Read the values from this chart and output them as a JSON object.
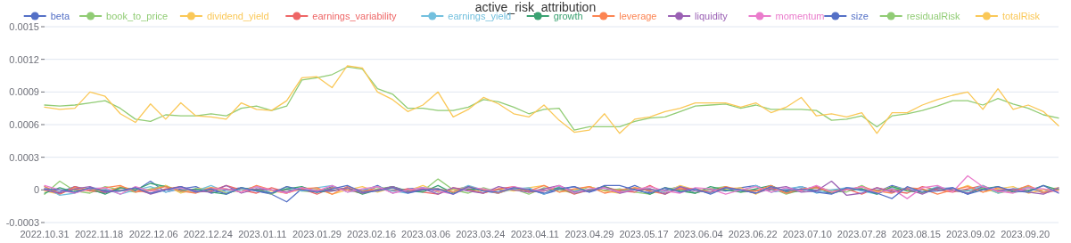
{
  "chart_data": {
    "type": "line",
    "title": "active_risk_attribution",
    "legend": "top",
    "grid": "y",
    "marker": "none",
    "xlim": [
      "2022-10-31",
      "2023-10-01"
    ],
    "ylim": [
      -0.0003,
      0.0015
    ],
    "yticks": [
      -0.0003,
      0,
      0.0003,
      0.0006,
      0.0009,
      0.0012,
      0.0015
    ],
    "xticks": [
      {
        "value": "2022-10-31",
        "label": "2022.10.31"
      },
      {
        "value": "2022-11-18",
        "label": "2022.11.18"
      },
      {
        "value": "2022-12-06",
        "label": "2022.12.06"
      },
      {
        "value": "2022-12-24",
        "label": "2022.12.24"
      },
      {
        "value": "2023-01-11",
        "label": "2023.01.11"
      },
      {
        "value": "2023-01-29",
        "label": "2023.01.29"
      },
      {
        "value": "2023-02-16",
        "label": "2023.02.16"
      },
      {
        "value": "2023-03-06",
        "label": "2023.03.06"
      },
      {
        "value": "2023-03-24",
        "label": "2023.03.24"
      },
      {
        "value": "2023-04-11",
        "label": "2023.04.11"
      },
      {
        "value": "2023-04-29",
        "label": "2023.04.29"
      },
      {
        "value": "2023-05-17",
        "label": "2023.05.17"
      },
      {
        "value": "2023-06-04",
        "label": "2023.06.04"
      },
      {
        "value": "2023-06-22",
        "label": "2023.06.22"
      },
      {
        "value": "2023-07-10",
        "label": "2023.07.10"
      },
      {
        "value": "2023-07-28",
        "label": "2023.07.28"
      },
      {
        "value": "2023-08-15",
        "label": "2023.08.15"
      },
      {
        "value": "2023-09-02",
        "label": "2023.09.02"
      },
      {
        "value": "2023-09-20",
        "label": "2023.09.20"
      }
    ],
    "x": [
      "2022-10-31",
      "2022-11-05",
      "2022-11-10",
      "2022-11-15",
      "2022-11-20",
      "2022-11-25",
      "2022-11-30",
      "2022-12-05",
      "2022-12-10",
      "2022-12-15",
      "2022-12-20",
      "2022-12-25",
      "2022-12-30",
      "2023-01-04",
      "2023-01-09",
      "2023-01-14",
      "2023-01-19",
      "2023-01-24",
      "2023-01-29",
      "2023-02-03",
      "2023-02-08",
      "2023-02-13",
      "2023-02-18",
      "2023-02-23",
      "2023-02-28",
      "2023-03-05",
      "2023-03-10",
      "2023-03-15",
      "2023-03-20",
      "2023-03-25",
      "2023-03-30",
      "2023-04-04",
      "2023-04-09",
      "2023-04-14",
      "2023-04-19",
      "2023-04-24",
      "2023-04-29",
      "2023-05-04",
      "2023-05-09",
      "2023-05-14",
      "2023-05-19",
      "2023-05-24",
      "2023-05-29",
      "2023-06-03",
      "2023-06-08",
      "2023-06-13",
      "2023-06-18",
      "2023-06-23",
      "2023-06-28",
      "2023-07-03",
      "2023-07-08",
      "2023-07-13",
      "2023-07-18",
      "2023-07-23",
      "2023-07-28",
      "2023-08-02",
      "2023-08-07",
      "2023-08-12",
      "2023-08-17",
      "2023-08-22",
      "2023-08-27",
      "2023-09-01",
      "2023-09-06",
      "2023-09-11",
      "2023-09-16",
      "2023-09-21",
      "2023-09-26",
      "2023-10-01"
    ],
    "series": [
      {
        "name": "beta",
        "color": "#5470c6",
        "values": [
          1e-05,
          -2e-05,
          3e-05,
          0,
          -3e-05,
          2e-05,
          -1e-05,
          8e-05,
          -2e-05,
          1e-05,
          3e-05,
          -3e-05,
          0,
          2e-05,
          -1e-05,
          -4e-05,
          -0.00011,
          1e-05,
          -2e-05,
          3e-05,
          0,
          -1e-05,
          4e-05,
          -3e-05,
          1e-05,
          2e-05,
          -2e-05,
          0,
          3e-05,
          -1e-05,
          -3e-05,
          2e-05,
          1e-05,
          -4e-05,
          0,
          3e-05,
          -2e-05,
          2e-05,
          -1e-05,
          4e-05,
          -2e-05,
          0,
          3e-05,
          -3e-05,
          1e-05,
          -1e-05,
          2e-05,
          4e-05,
          -2e-05,
          0,
          3e-05,
          -1e-05,
          -3e-05,
          2e-05,
          1e-05,
          -2e-05,
          4e-05,
          0,
          -3e-05,
          1e-05,
          2e-05,
          -4e-05,
          3e-05,
          -1e-05,
          0,
          2e-05,
          -2e-05,
          1e-05
        ]
      },
      {
        "name": "book_to_price",
        "color": "#91cc75",
        "values": [
          -4e-05,
          8e-05,
          -1e-05,
          -3e-05,
          3e-05,
          0,
          -2e-05,
          1e-05,
          4e-05,
          -2e-05,
          -1e-05,
          2e-05,
          -3e-05,
          0,
          1e-05,
          -4e-05,
          3e-05,
          -1e-05,
          -2e-05,
          2e-05,
          0,
          -3e-05,
          1e-05,
          3e-05,
          -2e-05,
          -1e-05,
          0.0001,
          0,
          -3e-05,
          2e-05,
          -2e-05,
          1e-05,
          -4e-05,
          2e-05,
          0,
          -3e-05,
          3e-05,
          -1e-05,
          1e-05,
          -2e-05,
          -4e-05,
          2e-05,
          0,
          -3e-05,
          1e-05,
          3e-05,
          -2e-05,
          -1e-05,
          2e-05,
          -4e-05,
          0,
          3e-05,
          -1e-05,
          -2e-05,
          4e-05,
          -3e-05,
          1e-05,
          0,
          -2e-05,
          2e-05,
          -1e-05,
          -1e-05,
          2e-05,
          -3e-05,
          0,
          3e-05,
          -2e-05,
          1e-05
        ]
      },
      {
        "name": "dividend_yield",
        "color": "#fac858",
        "values": [
          -1e-05,
          -4e-05,
          2e-05,
          1e-05,
          -2e-05,
          3e-05,
          0,
          -1e-05,
          4e-05,
          -3e-05,
          1e-05,
          2e-05,
          -2e-05,
          0,
          3e-05,
          -1e-05,
          -3e-05,
          2e-05,
          1e-05,
          -4e-05,
          0,
          3e-05,
          -2e-05,
          2e-05,
          -1e-05,
          4e-05,
          -2e-05,
          0,
          3e-05,
          -3e-05,
          1e-05,
          -1e-05,
          2e-05,
          4e-05,
          -2e-05,
          0,
          3e-05,
          -1e-05,
          -3e-05,
          2e-05,
          1e-05,
          -2e-05,
          4e-05,
          0,
          -3e-05,
          1e-05,
          2e-05,
          -4e-05,
          3e-05,
          -1e-05,
          0,
          2e-05,
          -2e-05,
          1e-05,
          1e-05,
          -2e-05,
          3e-05,
          0,
          -3e-05,
          2e-05,
          -1e-05,
          4e-05,
          -2e-05,
          1e-05,
          3e-05,
          -3e-05,
          0,
          2e-05
        ]
      },
      {
        "name": "earnings_variability",
        "color": "#ee6666",
        "values": [
          1e-05,
          -4e-05,
          3e-05,
          -1e-05,
          -2e-05,
          2e-05,
          0,
          -3e-05,
          1e-05,
          3e-05,
          -2e-05,
          -1e-05,
          4e-05,
          0,
          -3e-05,
          2e-05,
          -2e-05,
          1e-05,
          -4e-05,
          2e-05,
          0,
          -3e-05,
          3e-05,
          -1e-05,
          1e-05,
          -2e-05,
          -4e-05,
          2e-05,
          0,
          -3e-05,
          1e-05,
          3e-05,
          -2e-05,
          -1e-05,
          2e-05,
          -4e-05,
          0,
          3e-05,
          -1e-05,
          -2e-05,
          4e-05,
          -3e-05,
          1e-05,
          0,
          -2e-05,
          2e-05,
          -1e-05,
          -1e-05,
          2e-05,
          -3e-05,
          0,
          3e-05,
          -2e-05,
          1e-05,
          -4e-05,
          2e-05,
          -1e-05,
          -3e-05,
          3e-05,
          0,
          -2e-05,
          1e-05,
          4e-05,
          -2e-05,
          -1e-05,
          2e-05,
          -3e-05,
          0
        ]
      },
      {
        "name": "earnings_yield",
        "color": "#73c0de",
        "values": [
          3e-05,
          -5e-05,
          -3e-05,
          2e-05,
          1e-05,
          -4e-05,
          0,
          3e-05,
          -2e-05,
          2e-05,
          -1e-05,
          4e-05,
          -2e-05,
          0,
          3e-05,
          -3e-05,
          1e-05,
          -1e-05,
          2e-05,
          4e-05,
          -2e-05,
          0,
          3e-05,
          -1e-05,
          -3e-05,
          2e-05,
          1e-05,
          -2e-05,
          4e-05,
          0,
          -3e-05,
          1e-05,
          2e-05,
          -4e-05,
          3e-05,
          -1e-05,
          0,
          2e-05,
          -2e-05,
          1e-05,
          1e-05,
          -2e-05,
          3e-05,
          0,
          -3e-05,
          2e-05,
          -1e-05,
          4e-05,
          -2e-05,
          1e-05,
          3e-05,
          -3e-05,
          0,
          2e-05,
          -1e-05,
          -4e-05,
          2e-05,
          1e-05,
          -2e-05,
          3e-05,
          0,
          -1e-05,
          4e-05,
          -3e-05,
          1e-05,
          2e-05,
          -2e-05,
          0
        ]
      },
      {
        "name": "growth",
        "color": "#3ba272",
        "values": [
          -3e-05,
          2e-05,
          -2e-05,
          1e-05,
          -4e-05,
          2e-05,
          0,
          6e-05,
          3e-05,
          -1e-05,
          1e-05,
          -2e-05,
          -4e-05,
          2e-05,
          0,
          -3e-05,
          1e-05,
          3e-05,
          -2e-05,
          -1e-05,
          2e-05,
          -4e-05,
          0,
          3e-05,
          -1e-05,
          -2e-05,
          4e-05,
          -3e-05,
          1e-05,
          0,
          -2e-05,
          2e-05,
          -1e-05,
          -1e-05,
          2e-05,
          -3e-05,
          0,
          3e-05,
          -2e-05,
          1e-05,
          -4e-05,
          2e-05,
          -1e-05,
          -3e-05,
          3e-05,
          0,
          -2e-05,
          1e-05,
          4e-05,
          -2e-05,
          -1e-05,
          2e-05,
          -3e-05,
          0,
          1e-05,
          -4e-05,
          3e-05,
          -1e-05,
          -2e-05,
          2e-05,
          0,
          -3e-05,
          1e-05,
          3e-05,
          -2e-05,
          -1e-05,
          4e-05,
          0
        ]
      },
      {
        "name": "leverage",
        "color": "#fc8452",
        "values": [
          3e-05,
          -3e-05,
          1e-05,
          -1e-05,
          2e-05,
          4e-05,
          -2e-05,
          0,
          3e-05,
          -1e-05,
          -3e-05,
          2e-05,
          1e-05,
          -2e-05,
          4e-05,
          0,
          -3e-05,
          1e-05,
          2e-05,
          -4e-05,
          3e-05,
          -1e-05,
          0,
          2e-05,
          -2e-05,
          1e-05,
          1e-05,
          -2e-05,
          3e-05,
          0,
          -3e-05,
          2e-05,
          -1e-05,
          4e-05,
          -2e-05,
          1e-05,
          3e-05,
          -3e-05,
          0,
          2e-05,
          -1e-05,
          -4e-05,
          2e-05,
          1e-05,
          -2e-05,
          3e-05,
          0,
          -1e-05,
          4e-05,
          -3e-05,
          1e-05,
          2e-05,
          -2e-05,
          0,
          3e-05,
          -1e-05,
          -3e-05,
          2e-05,
          1e-05,
          -4e-05,
          0,
          3e-05,
          -2e-05,
          2e-05,
          -1e-05,
          4e-05,
          -2e-05,
          0
        ]
      },
      {
        "name": "liquidity",
        "color": "#9a60b4",
        "values": [
          0,
          -3e-05,
          1e-05,
          3e-05,
          -2e-05,
          -1e-05,
          2e-05,
          -4e-05,
          0,
          3e-05,
          -1e-05,
          -2e-05,
          4e-05,
          -3e-05,
          1e-05,
          0,
          -2e-05,
          2e-05,
          -1e-05,
          -1e-05,
          2e-05,
          -3e-05,
          0,
          3e-05,
          -2e-05,
          1e-05,
          -4e-05,
          2e-05,
          -1e-05,
          -3e-05,
          3e-05,
          0,
          -2e-05,
          1e-05,
          4e-05,
          -2e-05,
          -1e-05,
          2e-05,
          -3e-05,
          0,
          1e-05,
          -4e-05,
          3e-05,
          -1e-05,
          -2e-05,
          2e-05,
          0,
          -3e-05,
          1e-05,
          3e-05,
          -2e-05,
          -1e-05,
          8e-05,
          -5e-05,
          -3e-05,
          2e-05,
          -2e-05,
          1e-05,
          -4e-05,
          2e-05,
          0,
          -3e-05,
          3e-05,
          -1e-05,
          1e-05,
          -2e-05,
          -4e-05,
          2e-05
        ]
      },
      {
        "name": "momentum",
        "color": "#ea7ccc",
        "values": [
          4e-05,
          0,
          -3e-05,
          1e-05,
          2e-05,
          -4e-05,
          3e-05,
          -1e-05,
          0,
          2e-05,
          -2e-05,
          1e-05,
          1e-05,
          -2e-05,
          3e-05,
          0,
          -3e-05,
          2e-05,
          -1e-05,
          4e-05,
          -2e-05,
          1e-05,
          3e-05,
          -3e-05,
          0,
          2e-05,
          -1e-05,
          -4e-05,
          2e-05,
          1e-05,
          -2e-05,
          3e-05,
          0,
          -1e-05,
          4e-05,
          -3e-05,
          1e-05,
          2e-05,
          -2e-05,
          0,
          3e-05,
          -1e-05,
          -3e-05,
          2e-05,
          1e-05,
          -4e-05,
          0,
          3e-05,
          -2e-05,
          2e-05,
          -1e-05,
          4e-05,
          -2e-05,
          0,
          3e-05,
          -3e-05,
          1e-05,
          -8e-05,
          2e-05,
          4e-05,
          -2e-05,
          0.00013,
          3e-05,
          -1e-05,
          -3e-05,
          2e-05,
          1e-05,
          -2e-05
        ]
      },
      {
        "name": "size",
        "color": "#5470c6",
        "values": [
          1e-05,
          0,
          -2e-05,
          2e-05,
          -1e-05,
          -1e-05,
          2e-05,
          -3e-05,
          0,
          3e-05,
          -2e-05,
          1e-05,
          -4e-05,
          2e-05,
          -1e-05,
          -3e-05,
          3e-05,
          0,
          -2e-05,
          1e-05,
          4e-05,
          -2e-05,
          -1e-05,
          2e-05,
          -3e-05,
          0,
          1e-05,
          -4e-05,
          3e-05,
          -1e-05,
          -2e-05,
          2e-05,
          0,
          -3e-05,
          1e-05,
          3e-05,
          -2e-05,
          4e-05,
          4e-05,
          0,
          -3e-05,
          2e-05,
          -2e-05,
          1e-05,
          -4e-05,
          2e-05,
          0,
          -3e-05,
          3e-05,
          -1e-05,
          1e-05,
          -2e-05,
          -4e-05,
          2e-05,
          0,
          -3e-05,
          -8e-05,
          3e-05,
          -2e-05,
          -1e-05,
          2e-05,
          -4e-05,
          0,
          3e-05,
          -1e-05,
          -2e-05,
          4e-05,
          -3e-05
        ]
      },
      {
        "name": "residualRisk",
        "color": "#91cc75",
        "values": [
          0.00078,
          0.00077,
          0.00078,
          0.0008,
          0.00082,
          0.00075,
          0.00065,
          0.00063,
          0.00069,
          0.00068,
          0.00068,
          0.0007,
          0.00068,
          0.00075,
          0.00077,
          0.00073,
          0.00077,
          0.00101,
          0.00103,
          0.00106,
          0.00113,
          0.00111,
          0.00093,
          0.00088,
          0.00075,
          0.00075,
          0.00073,
          0.00073,
          0.00076,
          0.00083,
          0.00081,
          0.00076,
          0.0007,
          0.00074,
          0.00075,
          0.00055,
          0.00058,
          0.00058,
          0.00058,
          0.00063,
          0.00066,
          0.00067,
          0.00072,
          0.00077,
          0.00078,
          0.00079,
          0.00075,
          0.00078,
          0.00074,
          0.00074,
          0.00074,
          0.00073,
          0.00064,
          0.00065,
          0.00068,
          0.00058,
          0.00068,
          0.0007,
          0.00073,
          0.00077,
          0.00082,
          0.00082,
          0.00078,
          0.00084,
          0.00079,
          0.00075,
          0.00069,
          0.00066
        ]
      },
      {
        "name": "totalRisk",
        "color": "#fac858",
        "values": [
          0.00076,
          0.00074,
          0.00075,
          0.0009,
          0.00086,
          0.0007,
          0.00062,
          0.00079,
          0.00065,
          0.0008,
          0.00068,
          0.00067,
          0.00065,
          0.0008,
          0.00074,
          0.00073,
          0.00082,
          0.00103,
          0.00104,
          0.00094,
          0.00114,
          0.00112,
          0.0009,
          0.00083,
          0.00072,
          0.00078,
          0.0009,
          0.00067,
          0.00074,
          0.00085,
          0.00079,
          0.0007,
          0.00067,
          0.00078,
          0.00064,
          0.00053,
          0.00055,
          0.0007,
          0.00052,
          0.00065,
          0.00067,
          0.00072,
          0.00075,
          0.0008,
          0.0008,
          0.0008,
          0.00076,
          0.0008,
          0.00071,
          0.00076,
          0.00085,
          0.00068,
          0.0007,
          0.00067,
          0.00071,
          0.00052,
          0.00071,
          0.00071,
          0.00078,
          0.00083,
          0.00087,
          0.0009,
          0.00074,
          0.00093,
          0.00074,
          0.00078,
          0.00072,
          0.00059
        ]
      }
    ]
  }
}
